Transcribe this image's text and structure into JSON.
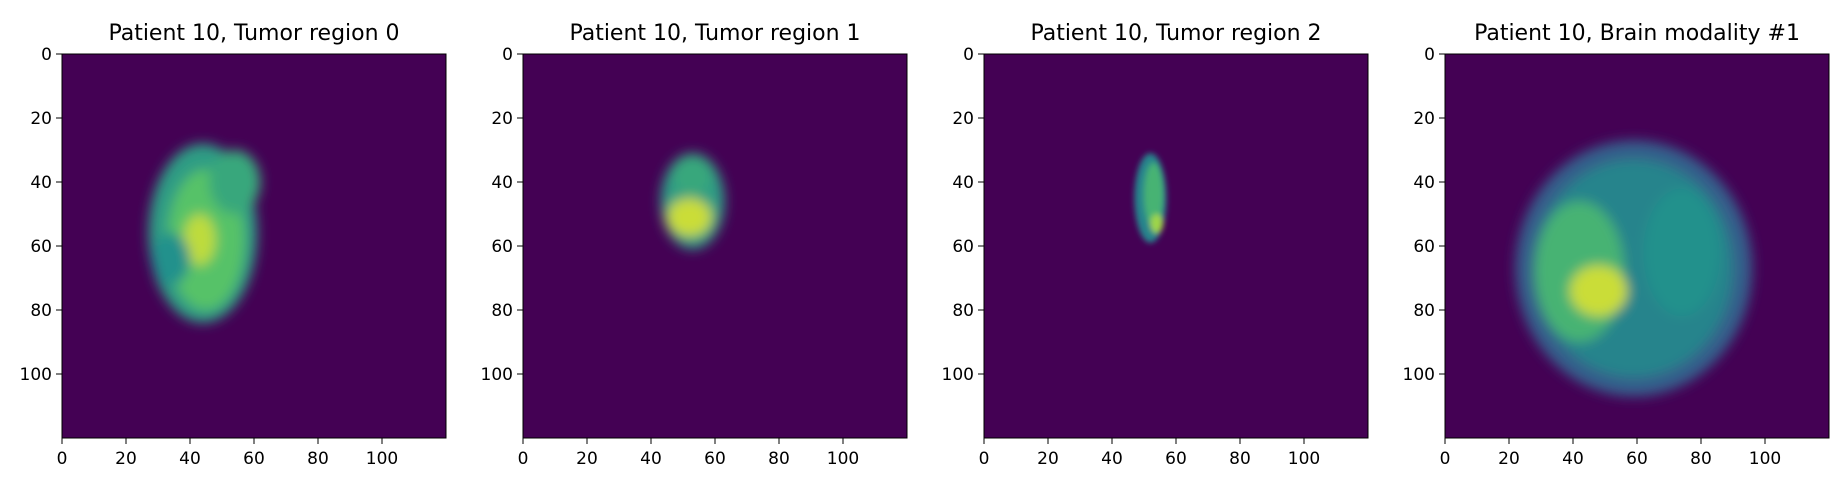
{
  "chart_data": [
    {
      "type": "heatmap",
      "title": "Patient 10, Tumor region 0",
      "xlabel": "",
      "ylabel": "",
      "colormap": "viridis",
      "background_color": "#440154",
      "xlim": [
        0,
        120
      ],
      "ylim": [
        120,
        0
      ],
      "xticks": [
        0,
        20,
        40,
        60,
        80,
        100
      ],
      "yticks": [
        0,
        20,
        40,
        60,
        80,
        100
      ],
      "blobs": [
        {
          "cx": 44,
          "cy": 56,
          "rx": 17,
          "ry": 28,
          "value": 0.55
        },
        {
          "cx": 45,
          "cy": 58,
          "rx": 12,
          "ry": 22,
          "value": 0.72
        },
        {
          "cx": 43,
          "cy": 58,
          "rx": 5,
          "ry": 8,
          "value": 0.9
        },
        {
          "cx": 54,
          "cy": 40,
          "rx": 8,
          "ry": 10,
          "value": 0.6
        },
        {
          "cx": 34,
          "cy": 64,
          "rx": 6,
          "ry": 8,
          "value": 0.5
        }
      ]
    },
    {
      "type": "heatmap",
      "title": "Patient 10, Tumor region 1",
      "xlabel": "",
      "ylabel": "",
      "colormap": "viridis",
      "background_color": "#440154",
      "xlim": [
        0,
        120
      ],
      "ylim": [
        120,
        0
      ],
      "xticks": [
        0,
        20,
        40,
        60,
        80,
        100
      ],
      "yticks": [
        0,
        20,
        40,
        60,
        80,
        100
      ],
      "blobs": [
        {
          "cx": 53,
          "cy": 46,
          "rx": 10,
          "ry": 15,
          "value": 0.55
        },
        {
          "cx": 53,
          "cy": 38,
          "rx": 6,
          "ry": 6,
          "value": 0.6
        },
        {
          "cx": 52,
          "cy": 51,
          "rx": 7,
          "ry": 6,
          "value": 0.92
        }
      ]
    },
    {
      "type": "heatmap",
      "title": "Patient 10, Tumor region 2",
      "xlabel": "",
      "ylabel": "",
      "colormap": "viridis",
      "background_color": "#440154",
      "xlim": [
        0,
        120
      ],
      "ylim": [
        120,
        0
      ],
      "xticks": [
        0,
        20,
        40,
        60,
        80,
        100
      ],
      "yticks": [
        0,
        20,
        40,
        60,
        80,
        100
      ],
      "blobs": [
        {
          "cx": 52,
          "cy": 45,
          "rx": 5,
          "ry": 14,
          "value": 0.45
        },
        {
          "cx": 53,
          "cy": 44,
          "rx": 3,
          "ry": 10,
          "value": 0.65
        },
        {
          "cx": 54,
          "cy": 53,
          "rx": 2,
          "ry": 3,
          "value": 0.85
        }
      ]
    },
    {
      "type": "heatmap",
      "title": "Patient 10, Brain modality #1",
      "xlabel": "",
      "ylabel": "",
      "colormap": "viridis",
      "background_color": "#440154",
      "xlim": [
        0,
        120
      ],
      "ylim": [
        120,
        0
      ],
      "xticks": [
        0,
        20,
        40,
        60,
        80,
        100
      ],
      "yticks": [
        0,
        20,
        40,
        60,
        80,
        100
      ],
      "blobs": [
        {
          "cx": 59,
          "cy": 67,
          "rx": 37,
          "ry": 40,
          "value": 0.3
        },
        {
          "cx": 59,
          "cy": 67,
          "rx": 31,
          "ry": 34,
          "value": 0.45
        },
        {
          "cx": 42,
          "cy": 68,
          "rx": 14,
          "ry": 22,
          "value": 0.65
        },
        {
          "cx": 48,
          "cy": 74,
          "rx": 9,
          "ry": 8,
          "value": 0.92
        },
        {
          "cx": 74,
          "cy": 62,
          "rx": 12,
          "ry": 20,
          "value": 0.5
        }
      ]
    }
  ]
}
